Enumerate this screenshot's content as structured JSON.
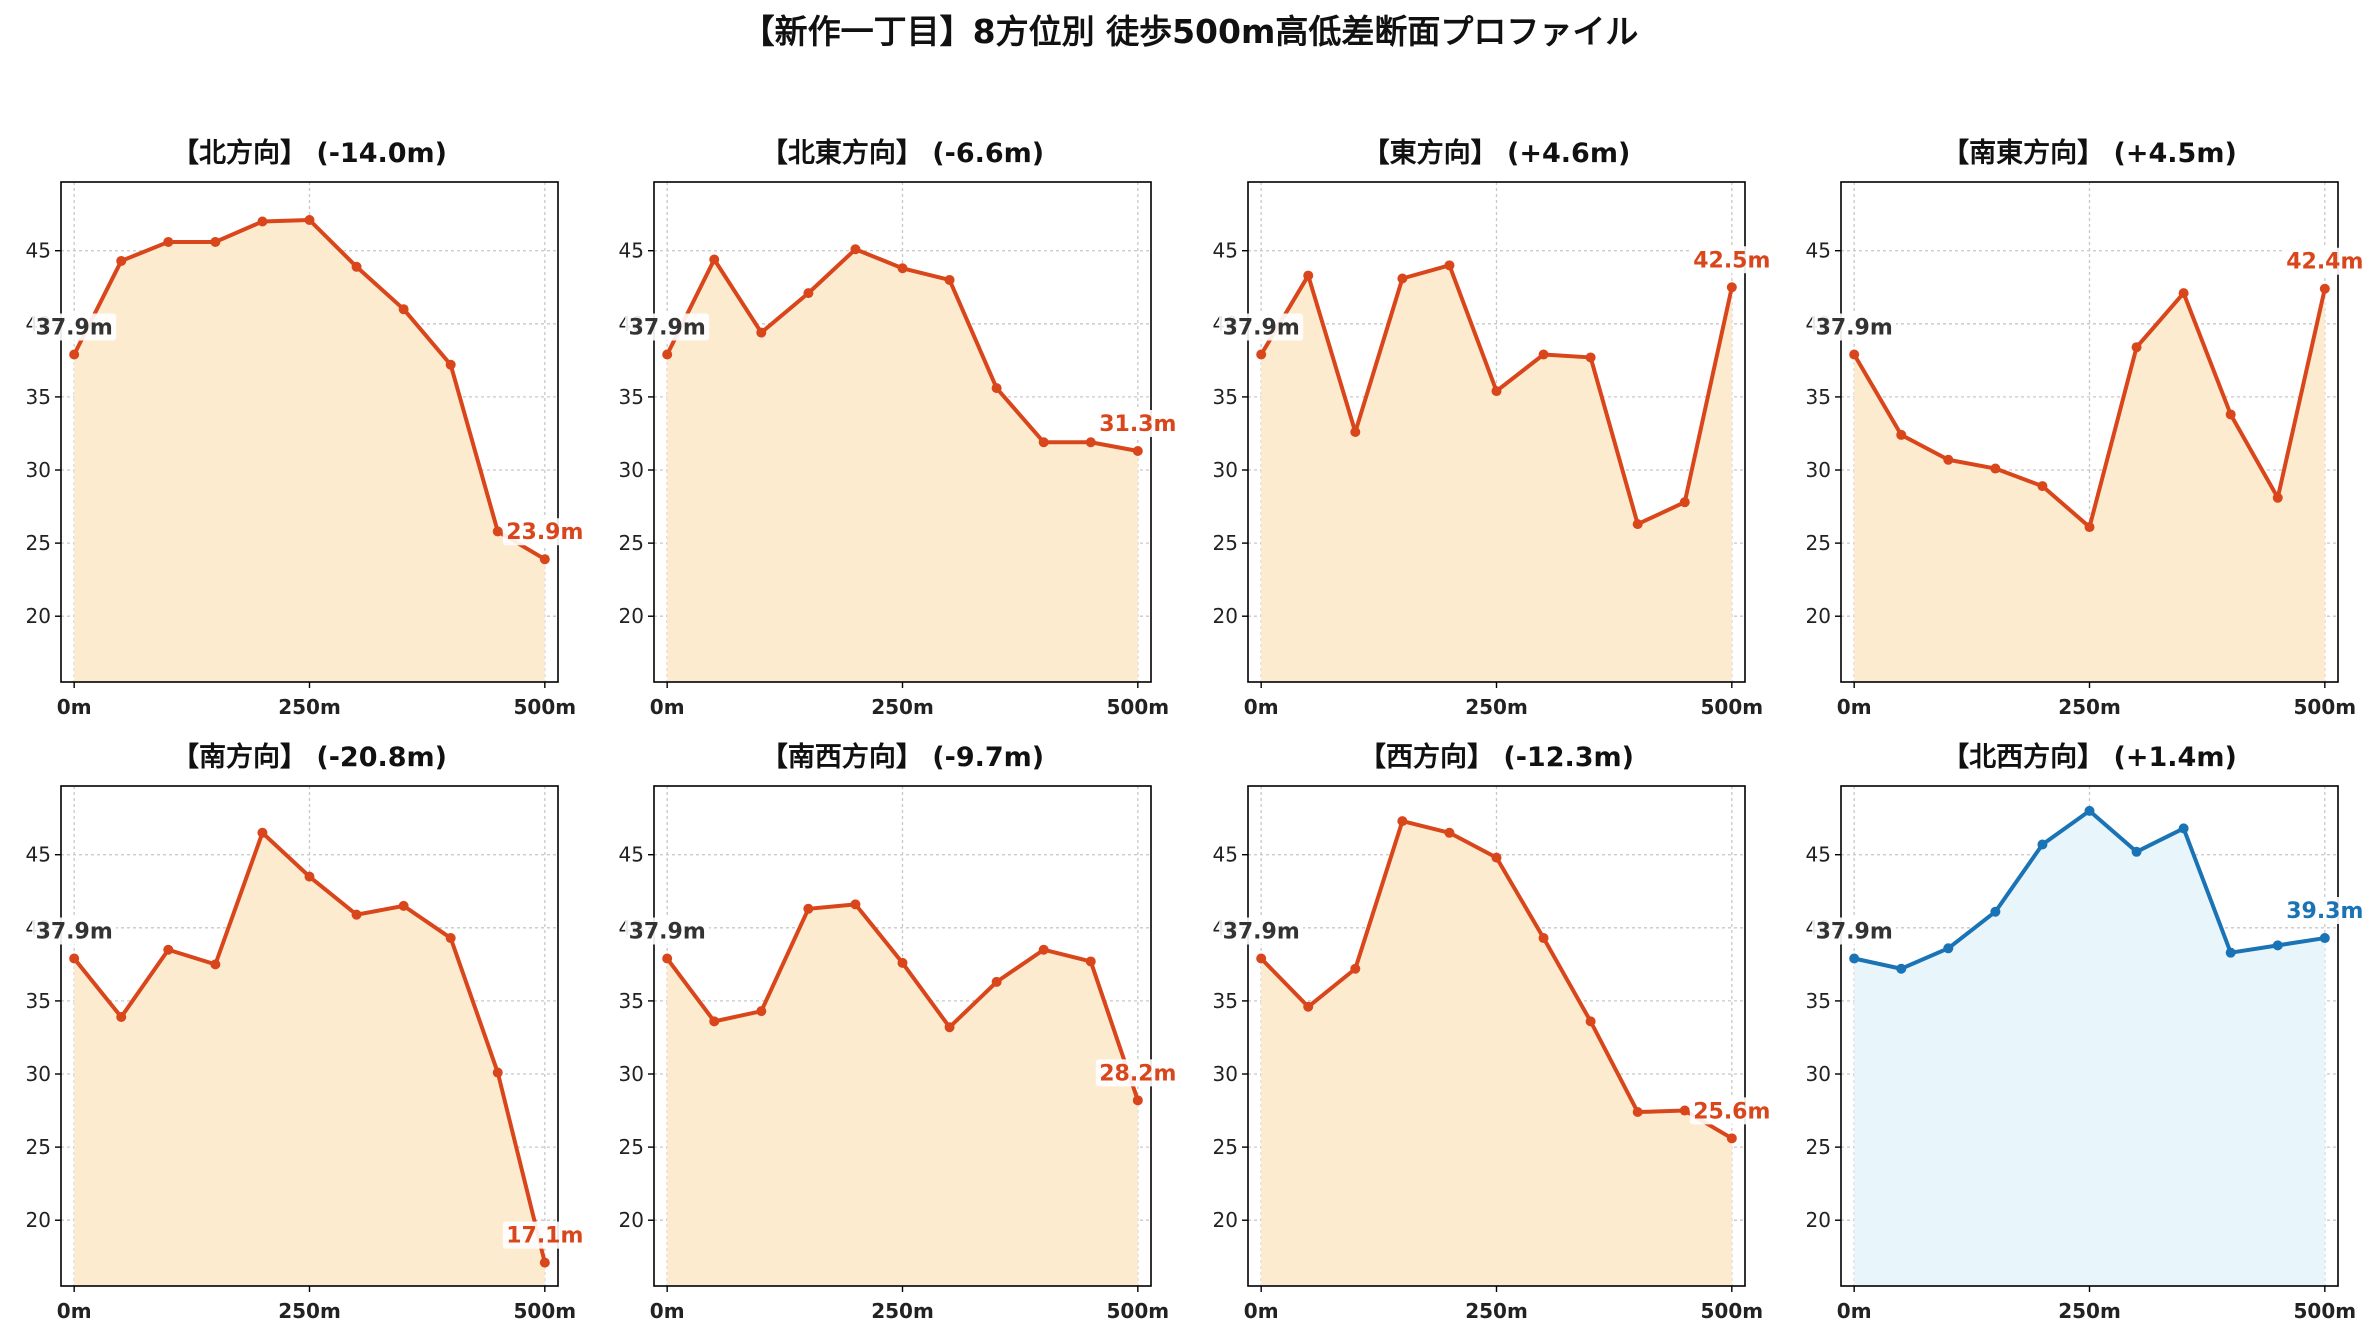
{
  "figure": {
    "title": "【新作一丁目】8方位別 徒歩500m高低差断面プロファイル"
  },
  "colors": {
    "down_line": "#d9461b",
    "down_fill": "#fdebd0",
    "up_line": "#1a73b5",
    "up_fill": "#e8f5fb",
    "start_label": "#333333",
    "grid": "#c8c8c8",
    "axis": "#000000"
  },
  "chart_data": [
    {
      "type": "area",
      "title": "【北方向】 (-14.0m)",
      "x": [
        0,
        50,
        100,
        150,
        200,
        250,
        300,
        350,
        400,
        450,
        500
      ],
      "xticks": [
        0,
        250,
        500
      ],
      "xtick_labels": [
        "0m",
        "250m",
        "500m"
      ],
      "yticks": [
        20,
        25,
        30,
        35,
        40,
        45
      ],
      "ylim": [
        15.5,
        49.7
      ],
      "xlim": [
        -14,
        514
      ],
      "grid": true,
      "style": "down",
      "series": [
        {
          "values": [
            37.9,
            44.3,
            45.6,
            45.6,
            47.0,
            47.1,
            43.9,
            41.0,
            37.2,
            25.8,
            23.9
          ]
        }
      ],
      "start_label": "37.9m",
      "end_label": "23.9m"
    },
    {
      "type": "area",
      "title": "【北東方向】 (-6.6m)",
      "x": [
        0,
        50,
        100,
        150,
        200,
        250,
        300,
        350,
        400,
        450,
        500
      ],
      "xticks": [
        0,
        250,
        500
      ],
      "xtick_labels": [
        "0m",
        "250m",
        "500m"
      ],
      "yticks": [
        20,
        25,
        30,
        35,
        40,
        45
      ],
      "ylim": [
        15.5,
        49.7
      ],
      "xlim": [
        -14,
        514
      ],
      "grid": true,
      "style": "down",
      "series": [
        {
          "values": [
            37.9,
            44.4,
            39.4,
            42.1,
            45.1,
            43.8,
            43.0,
            35.6,
            31.9,
            31.9,
            31.3
          ]
        }
      ],
      "start_label": "37.9m",
      "end_label": "31.3m"
    },
    {
      "type": "area",
      "title": "【東方向】 (+4.6m)",
      "x": [
        0,
        50,
        100,
        150,
        200,
        250,
        300,
        350,
        400,
        450,
        500
      ],
      "xticks": [
        0,
        250,
        500
      ],
      "xtick_labels": [
        "0m",
        "250m",
        "500m"
      ],
      "yticks": [
        20,
        25,
        30,
        35,
        40,
        45
      ],
      "ylim": [
        15.5,
        49.7
      ],
      "xlim": [
        -14,
        514
      ],
      "grid": true,
      "style": "down",
      "series": [
        {
          "values": [
            37.9,
            43.3,
            32.6,
            43.1,
            44.0,
            35.4,
            37.9,
            37.7,
            26.3,
            27.8,
            42.5
          ]
        }
      ],
      "start_label": "37.9m",
      "end_label": "42.5m"
    },
    {
      "type": "area",
      "title": "【南東方向】 (+4.5m)",
      "x": [
        0,
        50,
        100,
        150,
        200,
        250,
        300,
        350,
        400,
        450,
        500
      ],
      "xticks": [
        0,
        250,
        500
      ],
      "xtick_labels": [
        "0m",
        "250m",
        "500m"
      ],
      "yticks": [
        20,
        25,
        30,
        35,
        40,
        45
      ],
      "ylim": [
        15.5,
        49.7
      ],
      "xlim": [
        -14,
        514
      ],
      "grid": true,
      "style": "down",
      "series": [
        {
          "values": [
            37.9,
            32.4,
            30.7,
            30.1,
            28.9,
            26.1,
            38.4,
            42.1,
            33.8,
            28.1,
            42.4
          ]
        }
      ],
      "start_label": "37.9m",
      "end_label": "42.4m"
    },
    {
      "type": "area",
      "title": "【南方向】 (-20.8m)",
      "x": [
        0,
        50,
        100,
        150,
        200,
        250,
        300,
        350,
        400,
        450,
        500
      ],
      "xticks": [
        0,
        250,
        500
      ],
      "xtick_labels": [
        "0m",
        "250m",
        "500m"
      ],
      "yticks": [
        20,
        25,
        30,
        35,
        40,
        45
      ],
      "ylim": [
        15.5,
        49.7
      ],
      "xlim": [
        -14,
        514
      ],
      "grid": true,
      "style": "down",
      "series": [
        {
          "values": [
            37.9,
            33.9,
            38.5,
            37.5,
            46.5,
            43.5,
            40.9,
            41.5,
            39.3,
            30.1,
            17.1
          ]
        }
      ],
      "start_label": "37.9m",
      "end_label": "17.1m"
    },
    {
      "type": "area",
      "title": "【南西方向】 (-9.7m)",
      "x": [
        0,
        50,
        100,
        150,
        200,
        250,
        300,
        350,
        400,
        450,
        500
      ],
      "xticks": [
        0,
        250,
        500
      ],
      "xtick_labels": [
        "0m",
        "250m",
        "500m"
      ],
      "yticks": [
        20,
        25,
        30,
        35,
        40,
        45
      ],
      "ylim": [
        15.5,
        49.7
      ],
      "xlim": [
        -14,
        514
      ],
      "grid": true,
      "style": "down",
      "series": [
        {
          "values": [
            37.9,
            33.6,
            34.3,
            41.3,
            41.6,
            37.6,
            33.2,
            36.3,
            38.5,
            37.7,
            28.2
          ]
        }
      ],
      "start_label": "37.9m",
      "end_label": "28.2m"
    },
    {
      "type": "area",
      "title": "【西方向】 (-12.3m)",
      "x": [
        0,
        50,
        100,
        150,
        200,
        250,
        300,
        350,
        400,
        450,
        500
      ],
      "xticks": [
        0,
        250,
        500
      ],
      "xtick_labels": [
        "0m",
        "250m",
        "500m"
      ],
      "yticks": [
        20,
        25,
        30,
        35,
        40,
        45
      ],
      "ylim": [
        15.5,
        49.7
      ],
      "xlim": [
        -14,
        514
      ],
      "grid": true,
      "style": "down",
      "series": [
        {
          "values": [
            37.9,
            34.6,
            37.2,
            47.3,
            46.5,
            44.8,
            39.3,
            33.6,
            27.4,
            27.5,
            25.6
          ]
        }
      ],
      "start_label": "37.9m",
      "end_label": "25.6m"
    },
    {
      "type": "area",
      "title": "【北西方向】 (+1.4m)",
      "x": [
        0,
        50,
        100,
        150,
        200,
        250,
        300,
        350,
        400,
        450,
        500
      ],
      "xticks": [
        0,
        250,
        500
      ],
      "xtick_labels": [
        "0m",
        "250m",
        "500m"
      ],
      "yticks": [
        20,
        25,
        30,
        35,
        40,
        45
      ],
      "ylim": [
        15.5,
        49.7
      ],
      "xlim": [
        -14,
        514
      ],
      "grid": true,
      "style": "up",
      "series": [
        {
          "values": [
            37.9,
            37.2,
            38.6,
            41.1,
            45.7,
            48.0,
            45.2,
            46.8,
            38.3,
            38.8,
            39.3
          ]
        }
      ],
      "start_label": "37.9m",
      "end_label": "39.3m"
    }
  ]
}
